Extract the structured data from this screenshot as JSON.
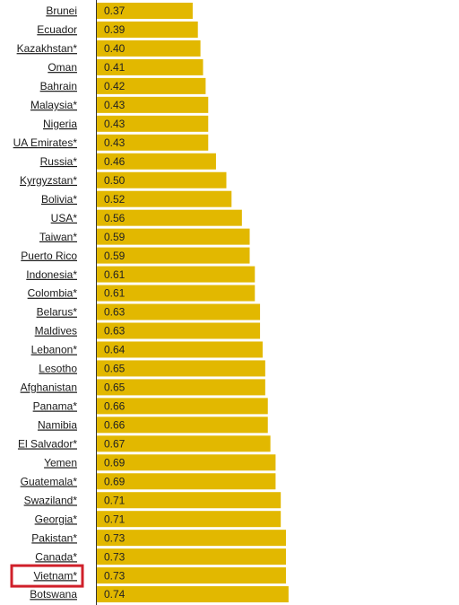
{
  "chart_data": {
    "type": "bar",
    "orientation": "horizontal",
    "color": "#e2b800",
    "highlight_index": 30,
    "highlight_color": "#d0202a",
    "categories": [
      "Brunei",
      "Ecuador",
      "Kazakhstan*",
      "Oman",
      "Bahrain",
      "Malaysia*",
      "Nigeria",
      "UA Emirates*",
      "Russia*",
      "Kyrgyzstan*",
      "Bolivia*",
      "USA*",
      "Taiwan*",
      "Puerto Rico",
      "Indonesia*",
      "Colombia*",
      "Belarus*",
      "Maldives",
      "Lebanon*",
      "Lesotho",
      "Afghanistan",
      "Panama*",
      "Namibia",
      "El Salvador*",
      "Yemen",
      "Guatemala*",
      "Swaziland*",
      "Georgia*",
      "Pakistan*",
      "Canada*",
      "Vietnam*",
      "Botswana"
    ],
    "values": [
      0.37,
      0.39,
      0.4,
      0.41,
      0.42,
      0.43,
      0.43,
      0.43,
      0.46,
      0.5,
      0.52,
      0.56,
      0.59,
      0.59,
      0.61,
      0.61,
      0.63,
      0.63,
      0.64,
      0.65,
      0.65,
      0.66,
      0.66,
      0.67,
      0.69,
      0.69,
      0.71,
      0.71,
      0.73,
      0.73,
      0.73,
      0.74
    ],
    "value_labels": [
      "0.37",
      "0.39",
      "0.40",
      "0.41",
      "0.42",
      "0.43",
      "0.43",
      "0.43",
      "0.46",
      "0.50",
      "0.52",
      "0.56",
      "0.59",
      "0.59",
      "0.61",
      "0.61",
      "0.63",
      "0.63",
      "0.64",
      "0.65",
      "0.65",
      "0.66",
      "0.66",
      "0.67",
      "0.69",
      "0.69",
      "0.71",
      "0.71",
      "0.73",
      "0.73",
      "0.73",
      "0.74"
    ]
  }
}
